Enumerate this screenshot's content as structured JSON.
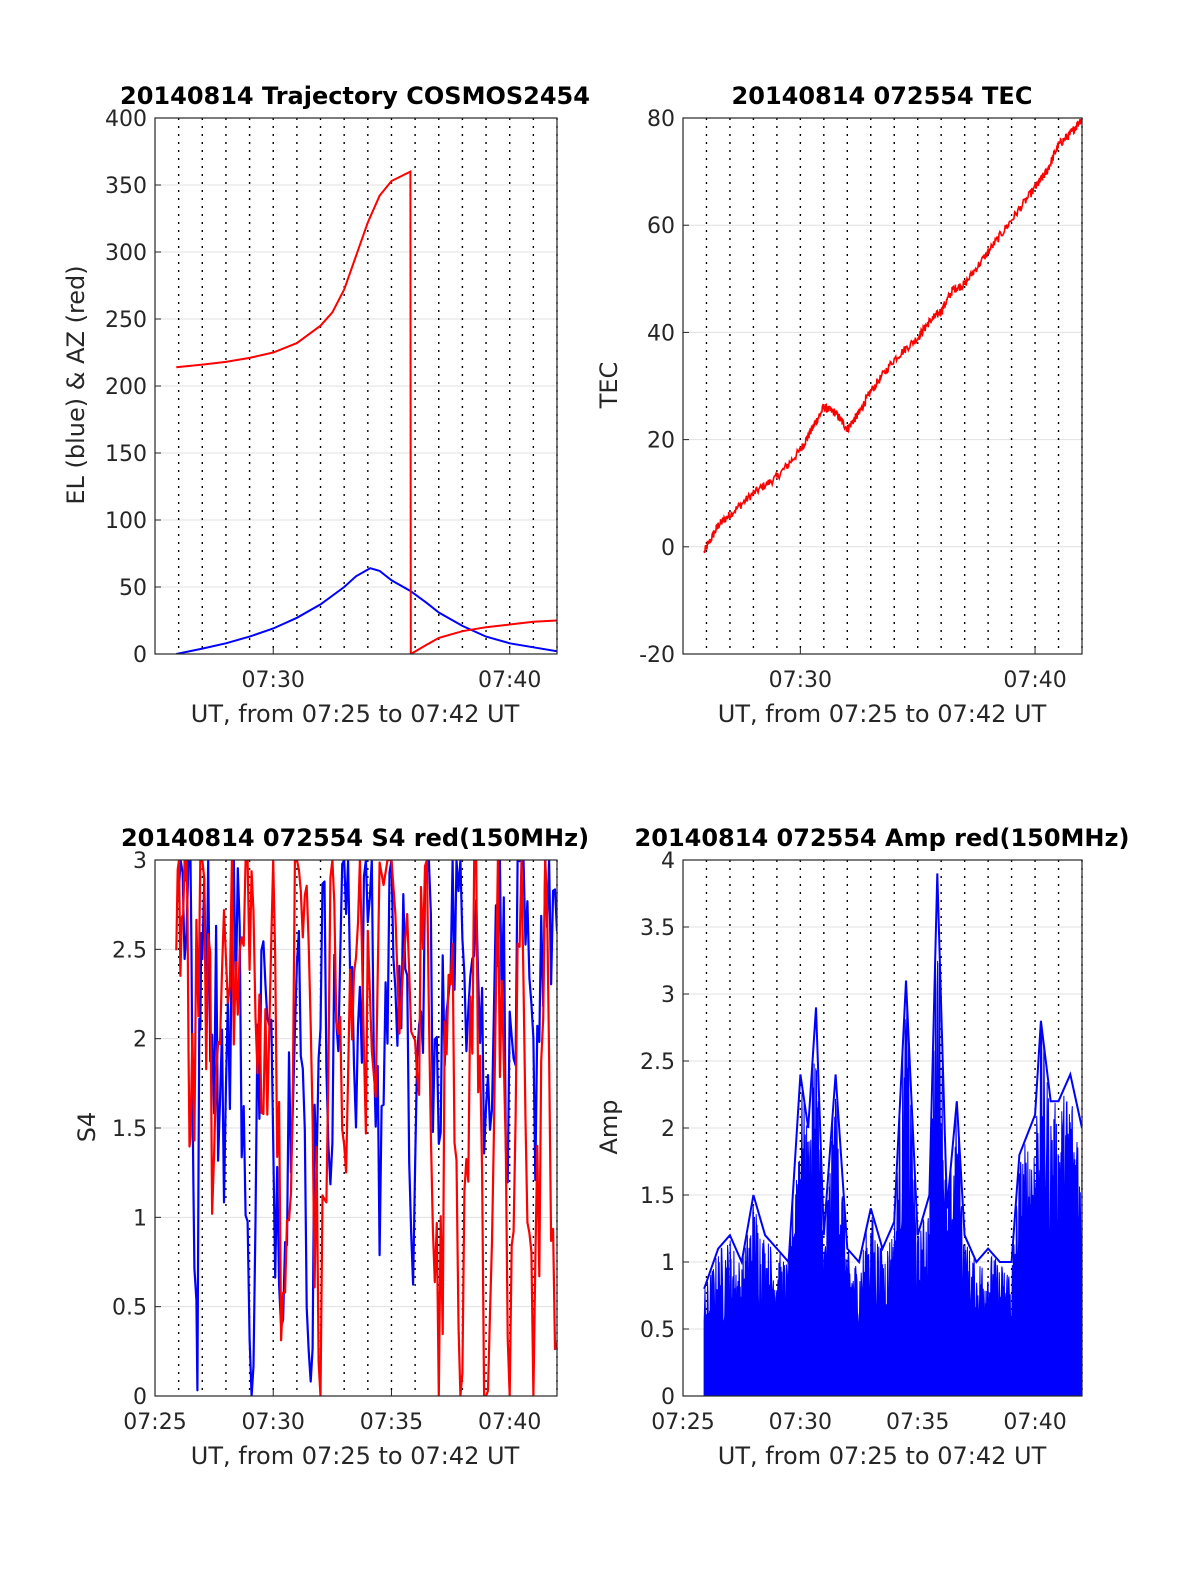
{
  "chart_data": [
    {
      "type": "line",
      "title": "20140814 Trajectory COSMOS2454",
      "xlabel": "UT, from 07:25 to 07:42 UT",
      "ylabel": "EL (blue) & AZ (red)",
      "xlim": [
        "07:25",
        "07:42"
      ],
      "x_tick_labels": [
        "07:30",
        "07:40"
      ],
      "ylim": [
        0,
        400
      ],
      "y_tick_labels": [
        "0",
        "50",
        "100",
        "150",
        "200",
        "250",
        "300",
        "350",
        "400"
      ],
      "grid": "dotted vertical lines every 1 minute, light horizontal gridlines",
      "series": [
        {
          "color": "#0000ff",
          "points": [
            [
              "07:25:54",
              0
            ],
            [
              "07:27:00",
              4
            ],
            [
              "07:28:00",
              8
            ],
            [
              "07:29:00",
              13
            ],
            [
              "07:30:00",
              19
            ],
            [
              "07:31:00",
              27
            ],
            [
              "07:32:00",
              37
            ],
            [
              "07:33:00",
              50
            ],
            [
              "07:33:30",
              58
            ],
            [
              "07:34:06",
              64
            ],
            [
              "07:34:30",
              62
            ],
            [
              "07:35:00",
              55
            ],
            [
              "07:35:48",
              47
            ],
            [
              "07:36:30",
              38
            ],
            [
              "07:37:00",
              31
            ],
            [
              "07:38:00",
              21
            ],
            [
              "07:39:00",
              13
            ],
            [
              "07:40:00",
              8
            ],
            [
              "07:41:00",
              5
            ],
            [
              "07:42:00",
              2
            ]
          ]
        },
        {
          "color": "#ff0000",
          "points": [
            [
              "07:25:54",
              214
            ],
            [
              "07:27:00",
              216
            ],
            [
              "07:28:00",
              218
            ],
            [
              "07:29:00",
              221
            ],
            [
              "07:30:00",
              225
            ],
            [
              "07:31:00",
              232
            ],
            [
              "07:32:00",
              245
            ],
            [
              "07:32:30",
              255
            ],
            [
              "07:33:00",
              272
            ],
            [
              "07:33:30",
              297
            ],
            [
              "07:34:00",
              322
            ],
            [
              "07:34:30",
              342
            ],
            [
              "07:35:00",
              353
            ],
            [
              "07:35:48",
              360
            ],
            [
              "07:35:49",
              0
            ],
            [
              "07:36:30",
              7
            ],
            [
              "07:37:00",
              12
            ],
            [
              "07:38:00",
              17
            ],
            [
              "07:39:00",
              20
            ],
            [
              "07:40:00",
              22
            ],
            [
              "07:41:00",
              24
            ],
            [
              "07:42:00",
              25
            ]
          ]
        }
      ]
    },
    {
      "type": "line",
      "title": "20140814 072554 TEC",
      "xlabel": "UT, from 07:25 to 07:42 UT",
      "ylabel": "TEC",
      "xlim": [
        "07:25",
        "07:42"
      ],
      "x_tick_labels": [
        "07:30",
        "07:40"
      ],
      "ylim": [
        -20,
        80
      ],
      "y_tick_labels": [
        "-20",
        "0",
        "20",
        "40",
        "60",
        "80"
      ],
      "grid": "dotted vertical lines every 1 minute, light horizontal gridlines",
      "series": [
        {
          "color": "#ff0000",
          "points": [
            [
              "07:25:54",
              -1
            ],
            [
              "07:26:30",
              4
            ],
            [
              "07:27:00",
              6
            ],
            [
              "07:28:00",
              10
            ],
            [
              "07:29:00",
              13
            ],
            [
              "07:30:00",
              18
            ],
            [
              "07:30:30",
              22
            ],
            [
              "07:31:00",
              26
            ],
            [
              "07:31:30",
              25
            ],
            [
              "07:32:00",
              22
            ],
            [
              "07:32:30",
              25
            ],
            [
              "07:33:00",
              29
            ],
            [
              "07:34:00",
              35
            ],
            [
              "07:35:00",
              39
            ],
            [
              "07:35:30",
              42
            ],
            [
              "07:36:00",
              44
            ],
            [
              "07:36:30",
              48
            ],
            [
              "07:37:00",
              49
            ],
            [
              "07:38:00",
              55
            ],
            [
              "07:39:00",
              61
            ],
            [
              "07:40:00",
              67
            ],
            [
              "07:40:30",
              70
            ],
            [
              "07:41:00",
              75
            ],
            [
              "07:41:30",
              77
            ],
            [
              "07:42:00",
              80
            ]
          ]
        }
      ]
    },
    {
      "type": "line",
      "title": "20140814 072554 S4 red(150MHz)",
      "xlabel": "UT, from 07:25 to 07:42 UT",
      "ylabel": "S4",
      "xlim": [
        "07:25",
        "07:42"
      ],
      "x_tick_labels": [
        "07:25",
        "07:30",
        "07:35",
        "07:40"
      ],
      "ylim": [
        0,
        3
      ],
      "y_tick_labels": [
        "0",
        "0.5",
        "1",
        "1.5",
        "2",
        "2.5",
        "3"
      ],
      "grid": "dotted vertical lines every 1 minute, light horizontal gridlines",
      "series": [
        {
          "color": "#0000ff",
          "points": [
            [
              "07:26:00",
              2.8
            ],
            [
              "07:26:30",
              3.0
            ],
            [
              "07:26:45",
              0.0
            ],
            [
              "07:27:00",
              3.0
            ],
            [
              "07:27:30",
              2.2
            ],
            [
              "07:28:00",
              1.6
            ],
            [
              "07:28:30",
              3.0
            ],
            [
              "07:29:00",
              0.0
            ],
            [
              "07:29:30",
              2.4
            ],
            [
              "07:30:00",
              1.4
            ],
            [
              "07:30:30",
              0.9
            ],
            [
              "07:31:00",
              3.0
            ],
            [
              "07:31:30",
              0.0
            ],
            [
              "07:32:00",
              2.6
            ],
            [
              "07:32:30",
              1.7
            ],
            [
              "07:33:00",
              3.0
            ],
            [
              "07:33:30",
              2.0
            ],
            [
              "07:34:00",
              3.0
            ],
            [
              "07:34:30",
              1.2
            ],
            [
              "07:35:00",
              3.0
            ],
            [
              "07:35:30",
              2.2
            ],
            [
              "07:36:00",
              0.9
            ],
            [
              "07:36:30",
              3.0
            ],
            [
              "07:37:00",
              1.3
            ],
            [
              "07:37:30",
              3.0
            ],
            [
              "07:38:00",
              2.4
            ],
            [
              "07:38:30",
              3.0
            ],
            [
              "07:39:00",
              1.4
            ],
            [
              "07:39:30",
              3.0
            ],
            [
              "07:40:00",
              1.6
            ],
            [
              "07:40:30",
              2.8
            ],
            [
              "07:41:00",
              1.6
            ],
            [
              "07:41:30",
              3.0
            ],
            [
              "07:42:00",
              2.6
            ]
          ]
        },
        {
          "color": "#ff0000",
          "points": [
            [
              "07:25:54",
              2.2
            ],
            [
              "07:26:15",
              3.0
            ],
            [
              "07:26:30",
              1.6
            ],
            [
              "07:27:00",
              3.0
            ],
            [
              "07:27:30",
              1.3
            ],
            [
              "07:28:00",
              3.0
            ],
            [
              "07:28:30",
              2.1
            ],
            [
              "07:29:00",
              3.0
            ],
            [
              "07:29:30",
              1.4
            ],
            [
              "07:30:00",
              3.0
            ],
            [
              "07:30:30",
              0.0
            ],
            [
              "07:31:00",
              3.0
            ],
            [
              "07:31:30",
              2.4
            ],
            [
              "07:32:00",
              0.0
            ],
            [
              "07:32:30",
              3.0
            ],
            [
              "07:33:00",
              1.0
            ],
            [
              "07:33:30",
              3.0
            ],
            [
              "07:34:00",
              2.0
            ],
            [
              "07:35:00",
              3.0
            ],
            [
              "07:36:00",
              1.7
            ],
            [
              "07:36:30",
              3.0
            ],
            [
              "07:37:00",
              0.0
            ],
            [
              "07:37:30",
              3.0
            ],
            [
              "07:38:00",
              0.0
            ],
            [
              "07:38:30",
              3.0
            ],
            [
              "07:39:00",
              0.0
            ],
            [
              "07:39:30",
              2.5
            ],
            [
              "07:40:00",
              0.0
            ],
            [
              "07:40:30",
              3.0
            ],
            [
              "07:41:00",
              0.0
            ],
            [
              "07:41:30",
              2.6
            ],
            [
              "07:42:00",
              0.3
            ]
          ]
        }
      ]
    },
    {
      "type": "line",
      "title": "20140814 072554 Amp red(150MHz)",
      "xlabel": "UT, from 07:25 to 07:42 UT",
      "ylabel": "Amp",
      "xlim": [
        "07:25",
        "07:42"
      ],
      "x_tick_labels": [
        "07:25",
        "07:30",
        "07:35",
        "07:40"
      ],
      "ylim": [
        0,
        4
      ],
      "y_tick_labels": [
        "0",
        "0.5",
        "1",
        "1.5",
        "2",
        "2.5",
        "3",
        "3.5",
        "4"
      ],
      "grid": "dotted vertical lines every 1 minute, light horizontal gridlines",
      "series": [
        {
          "color": "#0000ff",
          "fill": "dense noisy signal filled to zero",
          "envelope": [
            [
              "07:25:54",
              0.8
            ],
            [
              "07:26:30",
              1.1
            ],
            [
              "07:27:00",
              1.2
            ],
            [
              "07:27:30",
              1.0
            ],
            [
              "07:28:00",
              1.5
            ],
            [
              "07:28:30",
              1.2
            ],
            [
              "07:29:00",
              1.1
            ],
            [
              "07:29:30",
              1.0
            ],
            [
              "07:30:00",
              2.4
            ],
            [
              "07:30:20",
              2.0
            ],
            [
              "07:30:40",
              2.9
            ],
            [
              "07:31:00",
              1.2
            ],
            [
              "07:31:30",
              2.4
            ],
            [
              "07:32:00",
              1.1
            ],
            [
              "07:32:30",
              1.0
            ],
            [
              "07:33:00",
              1.4
            ],
            [
              "07:33:30",
              1.1
            ],
            [
              "07:34:00",
              1.3
            ],
            [
              "07:34:30",
              3.1
            ],
            [
              "07:35:00",
              1.2
            ],
            [
              "07:35:30",
              1.5
            ],
            [
              "07:35:50",
              3.9
            ],
            [
              "07:36:15",
              1.4
            ],
            [
              "07:36:40",
              2.2
            ],
            [
              "07:37:00",
              1.2
            ],
            [
              "07:37:30",
              1.0
            ],
            [
              "07:38:00",
              1.1
            ],
            [
              "07:38:30",
              1.0
            ],
            [
              "07:39:00",
              1.0
            ],
            [
              "07:39:20",
              1.8
            ],
            [
              "07:40:00",
              2.1
            ],
            [
              "07:40:15",
              2.8
            ],
            [
              "07:40:40",
              2.2
            ],
            [
              "07:41:00",
              2.2
            ],
            [
              "07:41:30",
              2.4
            ],
            [
              "07:42:00",
              2.0
            ]
          ]
        }
      ]
    }
  ]
}
